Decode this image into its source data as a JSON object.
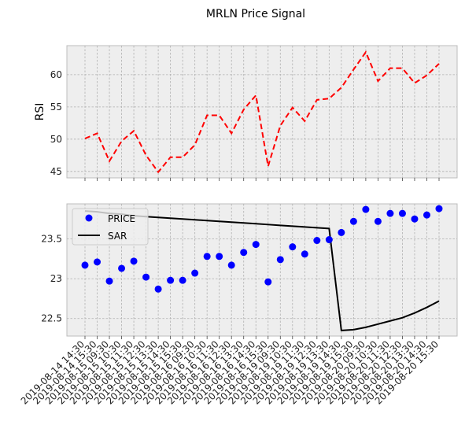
{
  "chart_data": [
    {
      "type": "line",
      "title": "MRLN Price Signal",
      "ylabel": "RSI",
      "xlabel": "",
      "ylim": [
        44,
        64.5
      ],
      "yticks": [
        45,
        50,
        55,
        60
      ],
      "grid": true,
      "series": [
        {
          "values": [
            50.1,
            50.9,
            46.6,
            49.7,
            51.3,
            47.5,
            44.9,
            47.2,
            47.2,
            49.1,
            53.7,
            53.7,
            50.9,
            54.6,
            56.8,
            45.8,
            52.1,
            54.9,
            52.8,
            56.1,
            56.3,
            58.0,
            60.8,
            63.5,
            59.0,
            61.0,
            61.0,
            58.7,
            59.9,
            61.7
          ],
          "color": "#ff0000"
        }
      ]
    },
    {
      "type": "scatter",
      "ylim": [
        22.28,
        23.94
      ],
      "yticks": [
        22.5,
        23.0,
        23.5
      ],
      "grid": true,
      "legend_position": "top-left",
      "categories": [
        "2019-08-14 14:30",
        "2019-08-14 15:30",
        "2019-08-15 09:30",
        "2019-08-15 10:30",
        "2019-08-15 11:30",
        "2019-08-15 12:30",
        "2019-08-15 13:30",
        "2019-08-15 14:30",
        "2019-08-15 15:30",
        "2019-08-16 09:30",
        "2019-08-16 10:30",
        "2019-08-16 11:30",
        "2019-08-16 12:30",
        "2019-08-16 13:30",
        "2019-08-16 14:30",
        "2019-08-16 15:30",
        "2019-08-19 09:30",
        "2019-08-19 10:30",
        "2019-08-19 11:30",
        "2019-08-19 12:30",
        "2019-08-19 13:30",
        "2019-08-19 14:30",
        "2019-08-19 15:30",
        "2019-08-20 09:30",
        "2019-08-20 10:30",
        "2019-08-20 11:30",
        "2019-08-20 12:30",
        "2019-08-20 13:30",
        "2019-08-20 14:30",
        "2019-08-20 15:30"
      ],
      "series": [
        {
          "name": "PRICE",
          "marker": "circle",
          "color": "#0000ff",
          "values": [
            23.17,
            23.21,
            22.97,
            23.13,
            23.22,
            23.02,
            22.87,
            22.98,
            22.98,
            23.07,
            23.28,
            23.28,
            23.17,
            23.33,
            23.43,
            22.96,
            23.24,
            23.4,
            23.31,
            23.48,
            23.49,
            23.58,
            23.72,
            23.87,
            23.72,
            23.82,
            23.82,
            23.75,
            23.8,
            23.88
          ]
        },
        {
          "name": "SAR",
          "color": "#000000",
          "values": [
            23.85,
            23.84,
            23.82,
            23.81,
            23.79,
            23.78,
            23.77,
            23.76,
            23.75,
            23.74,
            23.73,
            23.72,
            23.71,
            23.7,
            23.69,
            23.68,
            23.67,
            23.66,
            23.65,
            23.64,
            23.63,
            22.35,
            22.36,
            22.39,
            22.43,
            22.47,
            22.51,
            22.57,
            22.64,
            22.72
          ]
        }
      ]
    }
  ]
}
